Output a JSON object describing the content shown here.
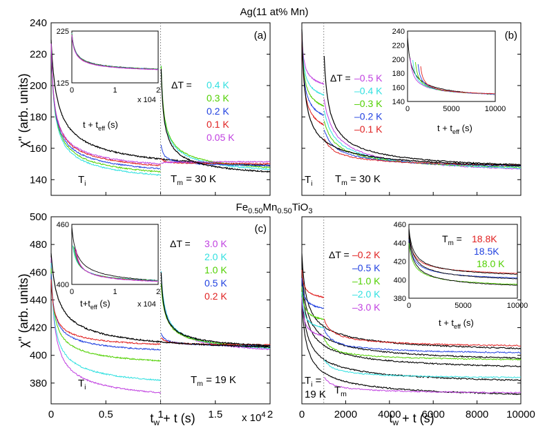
{
  "figure": {
    "title_top": "Ag(11 at% Mn)",
    "title_bottom_parts": [
      "Fe",
      "0.50",
      "Mn",
      "0.50",
      "TiO",
      "3"
    ],
    "ylabel": "χ'' (arb. units)",
    "xlabel_left": "t_w + t (s)",
    "xlabel_right": "t_w + t  (s)",
    "xscale_note": "x 10",
    "xscale_exp": "4"
  },
  "chart_data": [
    {
      "id": "a",
      "type": "line",
      "panel_label": "(a)",
      "title": "Ag(11 at% Mn)",
      "xlabel": "t_w + t (s)",
      "ylabel": "χ'' (arb. units)",
      "xlim": [
        0,
        20000
      ],
      "ylim": [
        130,
        240
      ],
      "x_ticks": [
        0,
        0.5,
        1,
        1.5,
        2
      ],
      "x_tick_scale": "x 10^4",
      "y_ticks": [
        140,
        160,
        180,
        200,
        220,
        240
      ],
      "tw": 10000,
      "legend_title": "ΔT =",
      "series": [
        {
          "name": "0.4 K",
          "dT": 0.4,
          "color": "#30e0e0",
          "before_end": 143,
          "after_peak": null
        },
        {
          "name": "0.3 K",
          "dT": 0.3,
          "color": "#50d000",
          "before_end": 145,
          "after_peak": null
        },
        {
          "name": "0.2 K",
          "dT": 0.2,
          "color": "#2040e0",
          "before_end": 147,
          "after_peak": 165
        },
        {
          "name": "0.1 K",
          "dT": 0.1,
          "color": "#e02020",
          "before_end": 149,
          "after_peak": 154
        },
        {
          "name": "0.05 K",
          "dT": 0.05,
          "color": "#c040e0",
          "before_end": 150,
          "after_peak": 150
        }
      ],
      "reference": {
        "name": "isothermal",
        "color": "#000000",
        "start": 229,
        "end_at_10000": 151,
        "end_at_20000": 149
      },
      "annotations": [
        "T_i",
        "T_m = 30 K"
      ],
      "inset": {
        "xlim": [
          0,
          20000
        ],
        "ylim": [
          125,
          225
        ],
        "y_ticks": [
          125,
          225
        ],
        "x_ticks": [
          0,
          1,
          2
        ],
        "x_tick_scale": "x 10^4",
        "xlabel": "t + t_eff (s)"
      }
    },
    {
      "id": "b",
      "type": "line",
      "panel_label": "(b)",
      "xlabel": "t_w + t  (s)",
      "xlim": [
        0,
        10000
      ],
      "ylim": [
        130,
        240
      ],
      "tw": 1000,
      "legend_title": "ΔT =",
      "series": [
        {
          "name": "–0.5 K",
          "dT": -0.5,
          "color": "#c040e0",
          "before_end": 201
        },
        {
          "name": "–0.4 K",
          "dT": -0.4,
          "color": "#30e0e0",
          "before_end": 194
        },
        {
          "name": "–0.3 K",
          "dT": -0.3,
          "color": "#50d000",
          "before_end": 187
        },
        {
          "name": "–0.2 K",
          "dT": -0.2,
          "color": "#2040e0",
          "before_end": 181
        },
        {
          "name": "–0.1 K",
          "dT": -0.1,
          "color": "#e02020",
          "before_end": 175
        }
      ],
      "reference": {
        "name": "isothermal",
        "color": "#000000",
        "start": 236,
        "end": 149
      },
      "annotations": [
        "T_i",
        "T_m = 30 K"
      ],
      "inset": {
        "xlim": [
          0,
          10000
        ],
        "ylim": [
          140,
          240
        ],
        "y_ticks": [
          140,
          160,
          180,
          200,
          220,
          240
        ],
        "x_ticks": [
          0,
          5000,
          10000
        ],
        "xlabel": "t + t_eff (s)"
      }
    },
    {
      "id": "c",
      "type": "line",
      "panel_label": "(c)",
      "title": "Fe0.50Mn0.50TiO3",
      "xlabel": "t_w + t (s)",
      "ylabel": "χ'' (arb. units)",
      "xlim": [
        0,
        20000
      ],
      "ylim": [
        365,
        500
      ],
      "x_ticks": [
        0,
        0.5,
        1,
        1.5,
        2
      ],
      "x_tick_scale": "x 10^4",
      "y_ticks": [
        380,
        400,
        420,
        440,
        460,
        480,
        500
      ],
      "tw": 10000,
      "legend_title": "ΔT =",
      "series": [
        {
          "name": "3.0 K",
          "dT": 3.0,
          "color": "#c040e0",
          "before_end": 373,
          "after_peak": null
        },
        {
          "name": "2.0 K",
          "dT": 2.0,
          "color": "#30e0e0",
          "before_end": 382,
          "after_peak": null
        },
        {
          "name": "1.0 K",
          "dT": 1.0,
          "color": "#50d000",
          "before_end": 396,
          "after_peak": 460
        },
        {
          "name": "0.5 K",
          "dT": 0.5,
          "color": "#2040e0",
          "before_end": 404,
          "after_peak": 418
        },
        {
          "name": "0.2 K",
          "dT": 0.2,
          "color": "#e02020",
          "before_end": 408,
          "after_peak": 414
        }
      ],
      "reference": {
        "name": "isothermal",
        "color": "#000000",
        "start": 474,
        "end_at_10000": 411,
        "end_at_20000": 406
      },
      "annotations": [
        "T_i",
        "T_m = 19 K"
      ],
      "inset": {
        "xlim": [
          0,
          20000
        ],
        "ylim": [
          400,
          460
        ],
        "y_ticks": [
          400,
          460
        ],
        "x_ticks": [
          0,
          1,
          2
        ],
        "x_tick_scale": "x 10^4",
        "xlabel": "t+t_eff (s)"
      }
    },
    {
      "id": "d",
      "type": "line",
      "panel_label": "(d)",
      "xlabel": "t_w + t  (s)",
      "xlim": [
        0,
        10000
      ],
      "ylim": [
        365,
        500
      ],
      "x_ticks": [
        0,
        2000,
        4000,
        6000,
        8000,
        10000
      ],
      "tw": 1000,
      "legend_title": "ΔT =",
      "series": [
        {
          "name": "–0.2 K",
          "dT": -0.2,
          "color": "#e02020",
          "level": 407
        },
        {
          "name": "–0.5 K",
          "dT": -0.5,
          "color": "#2040e0",
          "level": 402
        },
        {
          "name": "–1.0 K",
          "dT": -1.0,
          "color": "#50d000",
          "level": 397
        },
        {
          "name": "–2.0 K",
          "dT": -2.0,
          "color": "#30e0e0",
          "level": 384
        },
        {
          "name": "–3.0 K",
          "dT": -3.0,
          "color": "#c040e0",
          "level": 373
        }
      ],
      "annotations": [
        "T_i =",
        "19 K",
        "T_m"
      ],
      "inset": {
        "xlim": [
          0,
          10000
        ],
        "ylim": [
          380,
          460
        ],
        "y_ticks": [
          380,
          400,
          420,
          440,
          460
        ],
        "x_ticks": [
          0,
          5000,
          10000
        ],
        "xlabel": "t + t_eff (s)",
        "legend_title": "T_m =",
        "legend": [
          {
            "name": "18.8K",
            "color": "#e02020"
          },
          {
            "name": "18.5K",
            "color": "#2040e0"
          },
          {
            "name": "18.0 K",
            "color": "#50d000"
          }
        ]
      }
    }
  ]
}
